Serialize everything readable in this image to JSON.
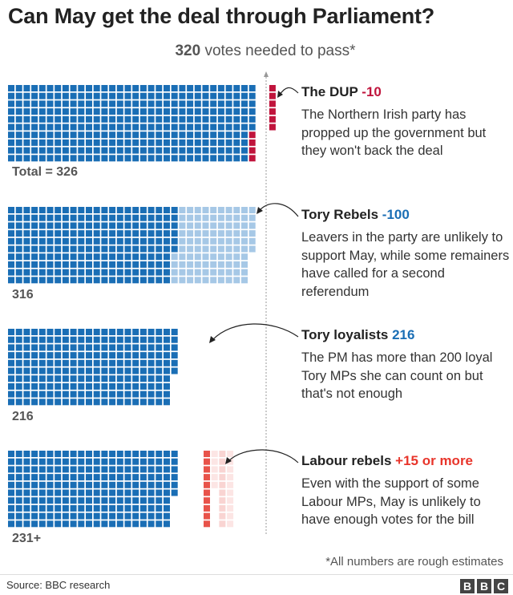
{
  "title": "Can May get the deal through Parliament?",
  "subtitle": {
    "number": "320",
    "text": " votes needed to pass*"
  },
  "colors": {
    "tory": "#1a6eb5",
    "dup": "#c0143c",
    "rebel": "#a6c8e6",
    "labour": "#e8534a",
    "text_negative_red": "#c0143c",
    "text_blue": "#1a6eb5",
    "text_labour": "#e8352b"
  },
  "annotations": [
    {
      "name": "The DUP",
      "value": "-10",
      "value_color": "#c0143c",
      "body": "The Northern Irish party has propped up the government but they won't back the deal"
    },
    {
      "name": "Tory Rebels",
      "value": "-100",
      "value_color": "#1a6eb5",
      "body": "Leavers in the party are unlikely to support May, while some remainers have called for a second referendum"
    },
    {
      "name": "Tory loyalists",
      "value": "216",
      "value_color": "#1a6eb5",
      "body": "The PM has more than 200 loyal Tory MPs she can count on but that's not enough"
    },
    {
      "name": "Labour rebels",
      "value": "+15 or more",
      "value_color": "#e8352b",
      "body": "Even with the support of some Labour MPs, May is unlikely to have enough votes for the bill"
    }
  ],
  "totals": [
    "Total = 326",
    "316",
    "216",
    "231+"
  ],
  "chart_data": {
    "type": "waffle",
    "unit": "1 square = 1 MP",
    "threshold": 320,
    "rows": [
      {
        "label": "Total = 326",
        "segments": [
          {
            "name": "Tory MPs",
            "value": 316,
            "color": "#1a6eb5"
          },
          {
            "name": "DUP",
            "value": 10,
            "color": "#c0143c"
          }
        ]
      },
      {
        "label": "316",
        "segments": [
          {
            "name": "Tory loyalists",
            "value": 216,
            "color": "#1a6eb5"
          },
          {
            "name": "Tory Rebels",
            "value": 100,
            "color": "#a6c8e6"
          }
        ]
      },
      {
        "label": "216",
        "segments": [
          {
            "name": "Tory loyalists",
            "value": 216,
            "color": "#1a6eb5"
          }
        ]
      },
      {
        "label": "231+",
        "segments": [
          {
            "name": "Tory loyalists",
            "value": 216,
            "color": "#1a6eb5"
          },
          {
            "name": "Labour rebels",
            "value": 15,
            "color": "#e8534a"
          }
        ]
      }
    ]
  },
  "footnote": "*All numbers are rough estimates",
  "source": "Source: BBC research",
  "logo": [
    "B",
    "B",
    "C"
  ]
}
